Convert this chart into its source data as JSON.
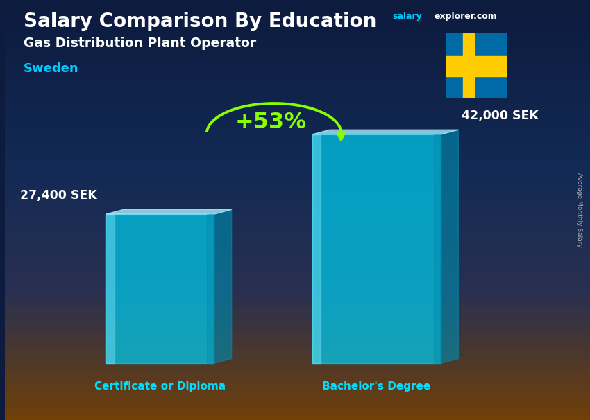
{
  "title_main": "Salary Comparison By Education",
  "subtitle": "Gas Distribution Plant Operator",
  "country": "Sweden",
  "categories": [
    "Certificate or Diploma",
    "Bachelor's Degree"
  ],
  "values": [
    27400,
    42000
  ],
  "value_labels": [
    "27,400 SEK",
    "42,000 SEK"
  ],
  "pct_change": "+53%",
  "bar_color_main": "#00ccee",
  "bar_color_light": "#88eeff",
  "bar_color_dark": "#0088aa",
  "bar_color_top": "#aaeeff",
  "bar_alpha": 0.72,
  "bg_top_color": "#0d1b3e",
  "bg_mid_color": "#1a3060",
  "bg_bot_color": "#6b4010",
  "arrow_color": "#88ff00",
  "flag_blue": "#006AA7",
  "flag_yellow": "#FECC00",
  "cat_label_color": "#00ddff",
  "value_label_color": "#ffffff",
  "title_color": "#ffffff",
  "country_color": "#00ccff",
  "salary_text_color": "#00ccff",
  "explorer_text_color": "#ffffff",
  "ylabel_text": "Average Monthly Salary",
  "ylabel_color": "#aaaaaa"
}
